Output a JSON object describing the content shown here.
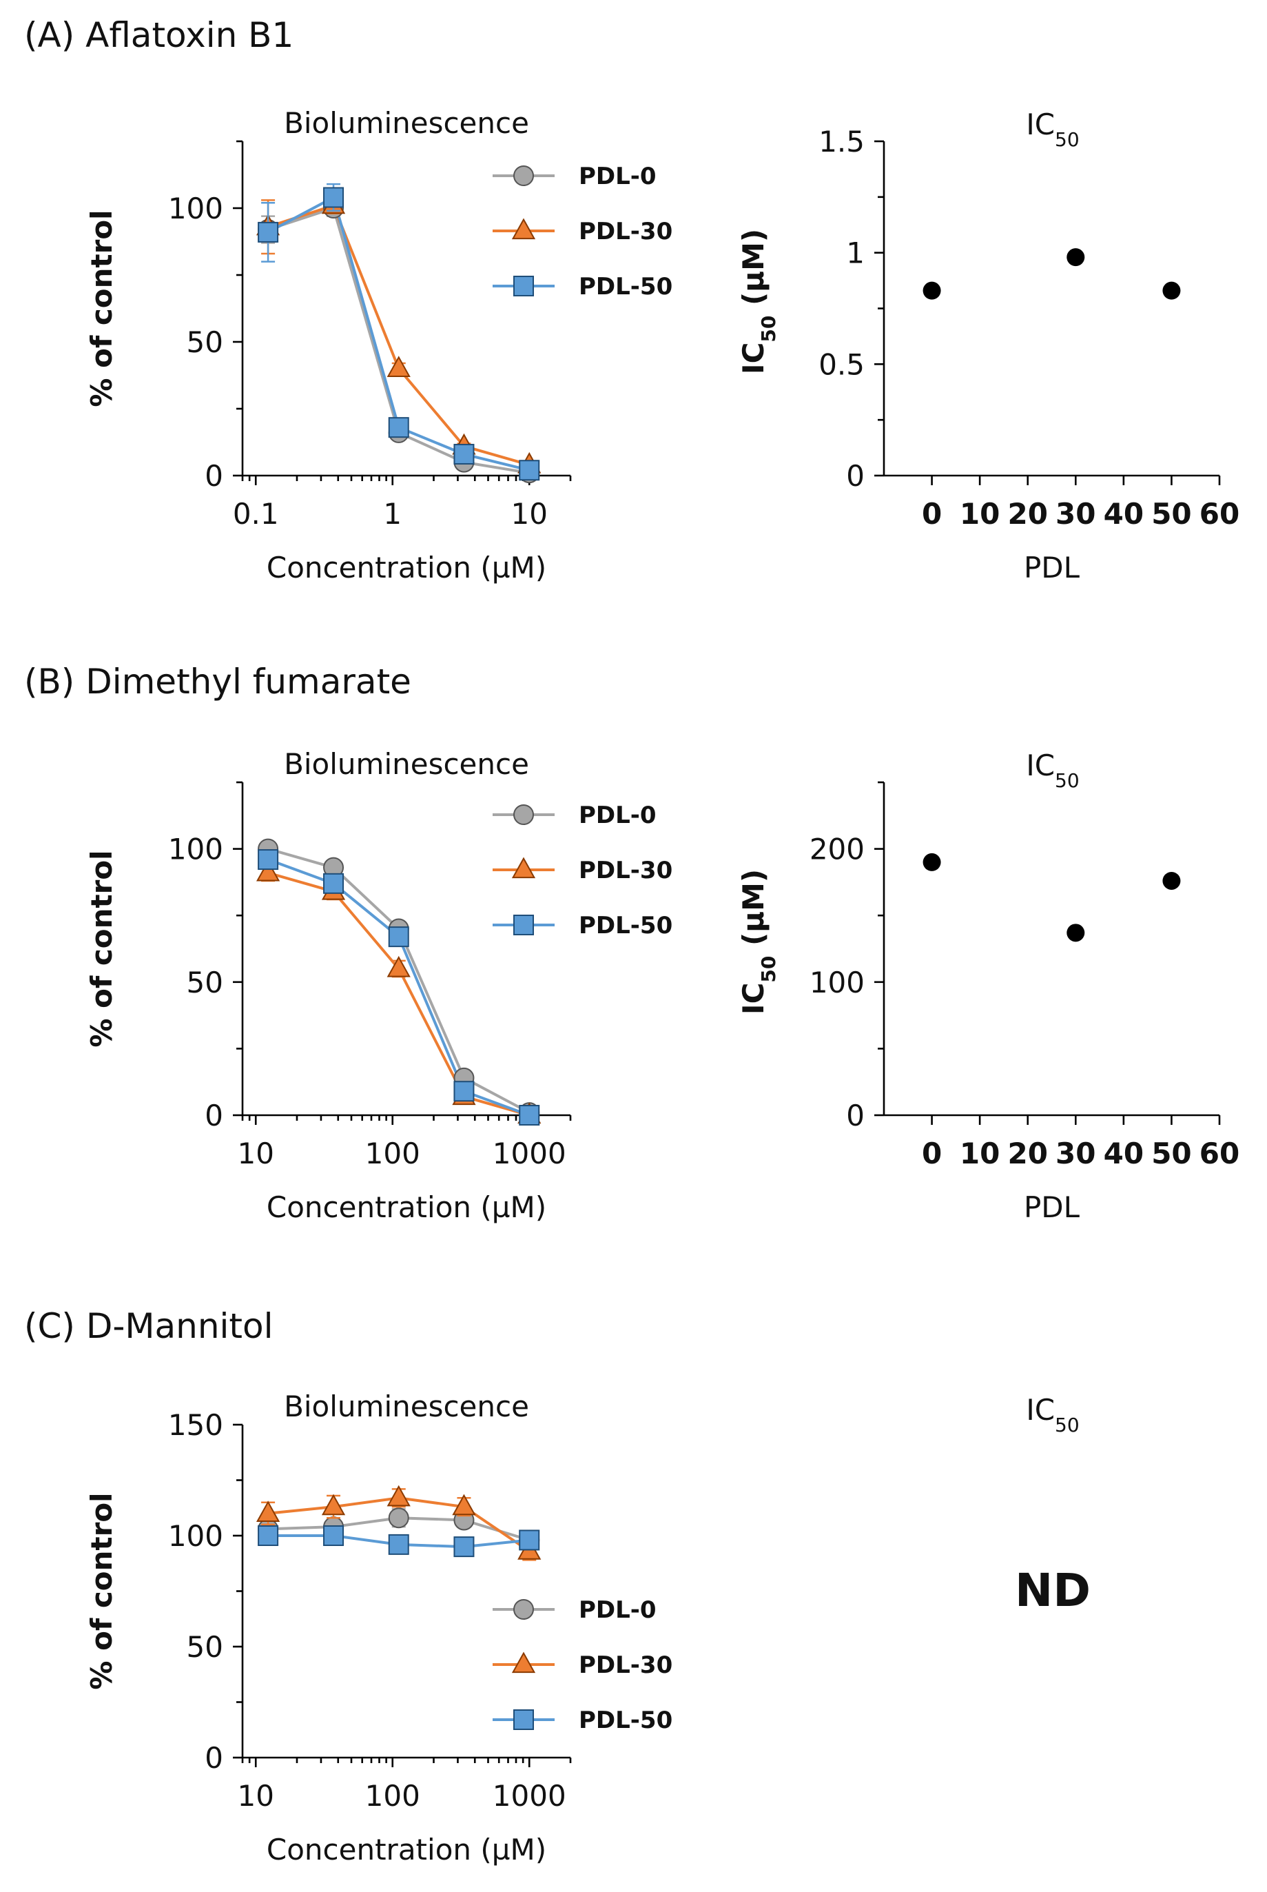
{
  "panels": {
    "A": {
      "title": "(A) Aflatoxin B1"
    },
    "B": {
      "title": "(B) Dimethyl fumarate"
    },
    "C": {
      "title": "(C) D-Mannitol",
      "ic50_note": "ND"
    }
  },
  "series_style": {
    "PDL-0": {
      "color": "#a6a6a6",
      "fill": "#a6a6a6",
      "edge": "#555555",
      "marker": "circle"
    },
    "PDL-30": {
      "color": "#ed7d31",
      "fill": "#ed7d31",
      "edge": "#8a3a00",
      "marker": "triangle"
    },
    "PDL-50": {
      "color": "#5b9bd5",
      "fill": "#5b9bd5",
      "edge": "#1f4e79",
      "marker": "square"
    }
  },
  "chart_data": [
    {
      "id": "A-bio",
      "type": "line",
      "title": "Bioluminescence",
      "xlabel": "Concentration (µM)",
      "ylabel": "% of control",
      "xscale": "log",
      "xlim": [
        0.08,
        20
      ],
      "ylim": [
        0,
        125
      ],
      "xticks": [
        0.1,
        1,
        10
      ],
      "xticklabels": [
        "0.1",
        "1",
        "10"
      ],
      "yticks": [
        0,
        50,
        100
      ],
      "yticklabels": [
        "0",
        "50",
        "100"
      ],
      "legend": "top-right",
      "x": [
        0.123,
        0.37,
        1.11,
        3.33,
        10
      ],
      "series": [
        {
          "name": "PDL-0",
          "values": [
            92,
            100,
            16,
            5,
            1
          ],
          "err": [
            5,
            3,
            2,
            1,
            1
          ]
        },
        {
          "name": "PDL-30",
          "values": [
            93,
            101,
            40,
            11,
            4
          ],
          "err": [
            10,
            3,
            2,
            1,
            1
          ]
        },
        {
          "name": "PDL-50",
          "values": [
            91,
            104,
            18,
            8,
            2
          ],
          "err": [
            11,
            5,
            2,
            2,
            1
          ]
        }
      ]
    },
    {
      "id": "A-ic50",
      "type": "scatter",
      "title": "IC",
      "title_sub": "50",
      "xlabel": "PDL",
      "ylabel": "IC",
      "ylabel_sub": "50",
      "ylabel_tail": " (µM)",
      "xlim": [
        -10,
        60
      ],
      "ylim": [
        0,
        1.5
      ],
      "xticks": [
        0,
        10,
        20,
        30,
        40,
        50,
        60
      ],
      "xticklabels": [
        "0",
        "10",
        "20",
        "30",
        "40",
        "50",
        "60"
      ],
      "yticks": [
        0,
        0.5,
        1,
        1.5
      ],
      "yticklabels": [
        "0",
        "0.5",
        "1",
        "1.5"
      ],
      "points": [
        {
          "x": 0,
          "y": 0.83
        },
        {
          "x": 30,
          "y": 0.98
        },
        {
          "x": 50,
          "y": 0.83
        }
      ]
    },
    {
      "id": "B-bio",
      "type": "line",
      "title": "Bioluminescence",
      "xlabel": "Concentration (µM)",
      "ylabel": "% of control",
      "xscale": "log",
      "xlim": [
        8,
        2000
      ],
      "ylim": [
        0,
        125
      ],
      "xticks": [
        10,
        100,
        1000
      ],
      "xticklabels": [
        "10",
        "100",
        "1000"
      ],
      "yticks": [
        0,
        50,
        100
      ],
      "yticklabels": [
        "0",
        "50",
        "100"
      ],
      "legend": "top-right",
      "x": [
        12.3,
        37,
        111,
        333,
        1000
      ],
      "series": [
        {
          "name": "PDL-0",
          "values": [
            100,
            93,
            70,
            14,
            1
          ],
          "err": [
            2,
            2,
            2,
            2,
            1
          ]
        },
        {
          "name": "PDL-30",
          "values": [
            91,
            84,
            55,
            7,
            0
          ],
          "err": [
            3,
            3,
            3,
            2,
            1
          ]
        },
        {
          "name": "PDL-50",
          "values": [
            96,
            87,
            67,
            9,
            0
          ],
          "err": [
            2,
            2,
            2,
            2,
            1
          ]
        }
      ]
    },
    {
      "id": "B-ic50",
      "type": "scatter",
      "title": "IC",
      "title_sub": "50",
      "xlabel": "PDL",
      "ylabel": "IC",
      "ylabel_sub": "50",
      "ylabel_tail": " (µM)",
      "xlim": [
        -10,
        60
      ],
      "ylim": [
        0,
        250
      ],
      "xticks": [
        0,
        10,
        20,
        30,
        40,
        50,
        60
      ],
      "xticklabels": [
        "0",
        "10",
        "20",
        "30",
        "40",
        "50",
        "60"
      ],
      "yticks": [
        0,
        100,
        200
      ],
      "yticklabels": [
        "0",
        "100",
        "200"
      ],
      "points": [
        {
          "x": 0,
          "y": 190
        },
        {
          "x": 30,
          "y": 137
        },
        {
          "x": 50,
          "y": 176
        }
      ]
    },
    {
      "id": "C-bio",
      "type": "line",
      "title": "Bioluminescence",
      "xlabel": "Concentration (µM)",
      "ylabel": "% of control",
      "xscale": "log",
      "xlim": [
        8,
        2000
      ],
      "ylim": [
        0,
        150
      ],
      "xticks": [
        10,
        100,
        1000
      ],
      "xticklabels": [
        "10",
        "100",
        "1000"
      ],
      "yticks": [
        0,
        50,
        100,
        150
      ],
      "yticklabels": [
        "0",
        "50",
        "100",
        "150"
      ],
      "legend": "bottom-right",
      "x": [
        12.3,
        37,
        111,
        333,
        1000
      ],
      "series": [
        {
          "name": "PDL-0",
          "values": [
            103,
            104,
            108,
            107,
            98
          ],
          "err": [
            3,
            3,
            4,
            3,
            3
          ]
        },
        {
          "name": "PDL-30",
          "values": [
            110,
            113,
            117,
            113,
            93
          ],
          "err": [
            5,
            5,
            4,
            4,
            4
          ]
        },
        {
          "name": "PDL-50",
          "values": [
            100,
            100,
            96,
            95,
            98
          ],
          "err": [
            2,
            2,
            3,
            2,
            3
          ]
        }
      ]
    },
    {
      "id": "C-ic50",
      "type": "scatter",
      "title": "IC",
      "title_sub": "50",
      "note": "ND",
      "points": []
    }
  ]
}
